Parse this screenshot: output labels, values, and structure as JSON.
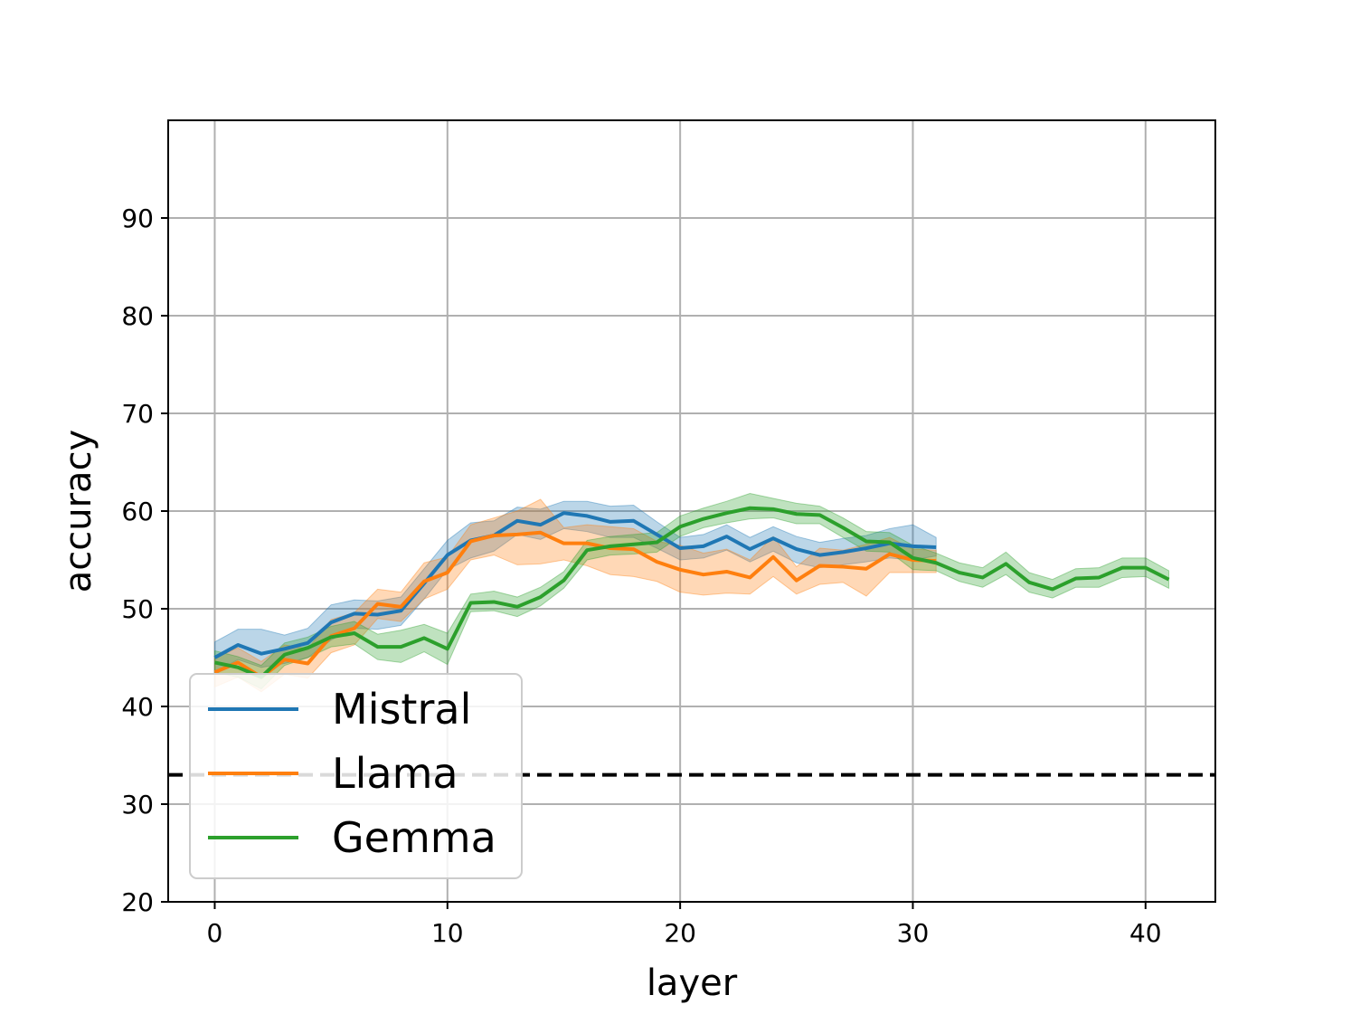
{
  "chart_data": {
    "type": "line",
    "title": "",
    "xlabel": "layer",
    "ylabel": "accuracy",
    "xlim": [
      -2,
      43
    ],
    "ylim": [
      20,
      100
    ],
    "xticks": [
      0,
      10,
      20,
      30,
      40
    ],
    "yticks": [
      20,
      30,
      40,
      50,
      60,
      70,
      80,
      90
    ],
    "grid": true,
    "legend_position": "lower-left",
    "baseline": {
      "y": 33,
      "style": "dashed",
      "color": "#000000"
    },
    "series": [
      {
        "name": "Mistral",
        "color": "#1f77b4",
        "x": [
          0,
          1,
          2,
          3,
          4,
          5,
          6,
          7,
          8,
          9,
          10,
          11,
          12,
          13,
          14,
          15,
          16,
          17,
          18,
          19,
          20,
          21,
          22,
          23,
          24,
          25,
          26,
          27,
          28,
          29,
          30,
          31
        ],
        "values": [
          45.0,
          46.3,
          45.4,
          45.9,
          46.5,
          48.6,
          49.5,
          49.4,
          49.8,
          52.6,
          55.5,
          57.0,
          57.5,
          59.0,
          58.6,
          59.8,
          59.5,
          58.9,
          59.0,
          57.6,
          56.2,
          56.4,
          57.4,
          56.1,
          57.2,
          56.1,
          55.5,
          55.8,
          56.2,
          56.7,
          56.4,
          56.3
        ],
        "lower": [
          43.5,
          44.8,
          44.0,
          44.4,
          45.0,
          46.8,
          48.0,
          47.9,
          48.3,
          51.0,
          54.0,
          55.2,
          55.9,
          57.6,
          57.1,
          58.2,
          57.9,
          57.3,
          57.3,
          56.2,
          55.0,
          55.2,
          56.0,
          54.8,
          55.9,
          54.7,
          54.2,
          54.5,
          54.8,
          55.2,
          55.0,
          55.4
        ],
        "upper": [
          46.6,
          47.9,
          47.9,
          47.3,
          48.0,
          50.4,
          50.9,
          50.8,
          51.2,
          54.1,
          57.0,
          58.8,
          59.0,
          60.4,
          60.2,
          61.0,
          61.0,
          60.5,
          60.6,
          58.9,
          57.3,
          57.6,
          58.6,
          57.3,
          58.4,
          57.4,
          56.8,
          57.2,
          57.5,
          58.2,
          58.6,
          57.3
        ]
      },
      {
        "name": "Llama",
        "color": "#ff7f0e",
        "x": [
          0,
          1,
          2,
          3,
          4,
          5,
          6,
          7,
          8,
          9,
          10,
          11,
          12,
          13,
          14,
          15,
          16,
          17,
          18,
          19,
          20,
          21,
          22,
          23,
          24,
          25,
          26,
          27,
          28,
          29,
          30,
          31
        ],
        "values": [
          43.5,
          44.5,
          43.0,
          44.8,
          44.4,
          47.2,
          48.0,
          50.5,
          50.2,
          52.8,
          53.7,
          56.9,
          57.5,
          57.6,
          57.8,
          56.7,
          56.7,
          56.2,
          56.1,
          54.8,
          54.0,
          53.5,
          53.8,
          53.2,
          55.3,
          52.9,
          54.4,
          54.3,
          54.1,
          55.6,
          55.0,
          54.9
        ],
        "lower": [
          42.0,
          43.0,
          41.5,
          43.3,
          42.9,
          45.5,
          46.3,
          49.0,
          48.7,
          51.0,
          52.0,
          55.0,
          55.5,
          54.5,
          54.6,
          55.0,
          54.4,
          53.5,
          53.3,
          52.8,
          51.7,
          51.4,
          51.6,
          51.5,
          53.3,
          51.5,
          52.5,
          52.7,
          51.3,
          53.7,
          53.7,
          53.7
        ],
        "upper": [
          45.0,
          46.0,
          44.6,
          46.3,
          45.9,
          48.9,
          49.6,
          52.0,
          51.7,
          54.7,
          55.3,
          58.6,
          59.3,
          60.0,
          61.2,
          58.3,
          58.6,
          58.4,
          58.2,
          56.9,
          56.5,
          55.7,
          56.1,
          55.0,
          57.4,
          54.3,
          56.2,
          56.0,
          56.6,
          57.3,
          56.1,
          56.0
        ]
      },
      {
        "name": "Gemma",
        "color": "#2ca02c",
        "x": [
          0,
          1,
          2,
          3,
          4,
          5,
          6,
          7,
          8,
          9,
          10,
          11,
          12,
          13,
          14,
          15,
          16,
          17,
          18,
          19,
          20,
          21,
          22,
          23,
          24,
          25,
          26,
          27,
          28,
          29,
          30,
          31,
          32,
          33,
          34,
          35,
          36,
          37,
          38,
          39,
          40,
          41
        ],
        "values": [
          44.5,
          44.0,
          43.0,
          45.3,
          46.0,
          47.1,
          47.5,
          46.1,
          46.1,
          47.0,
          45.9,
          50.6,
          50.7,
          50.2,
          51.2,
          52.9,
          56.0,
          56.4,
          56.6,
          56.8,
          58.4,
          59.2,
          59.8,
          60.3,
          60.2,
          59.7,
          59.6,
          58.3,
          56.9,
          56.8,
          55.2,
          54.7,
          53.7,
          53.2,
          54.6,
          52.7,
          52.0,
          53.1,
          53.2,
          54.2,
          54.2,
          53.0
        ],
        "lower": [
          43.5,
          43.0,
          41.8,
          44.2,
          45.0,
          46.1,
          46.4,
          44.8,
          44.5,
          45.6,
          44.3,
          49.7,
          49.8,
          49.2,
          50.3,
          52.1,
          55.0,
          55.5,
          55.6,
          55.8,
          57.4,
          58.3,
          58.8,
          59.2,
          59.3,
          58.7,
          58.7,
          57.3,
          55.9,
          55.8,
          54.0,
          53.9,
          52.8,
          52.2,
          53.5,
          51.7,
          51.1,
          52.2,
          52.2,
          53.2,
          53.3,
          52.1
        ],
        "upper": [
          45.7,
          45.1,
          44.2,
          46.5,
          47.1,
          48.2,
          48.7,
          47.4,
          47.8,
          48.4,
          47.5,
          51.5,
          51.8,
          51.2,
          52.2,
          53.8,
          57.0,
          57.4,
          57.6,
          57.8,
          59.5,
          60.3,
          61.0,
          61.8,
          61.3,
          60.8,
          60.5,
          59.3,
          57.9,
          57.8,
          56.5,
          55.7,
          54.7,
          54.2,
          55.8,
          53.7,
          53.0,
          54.1,
          54.2,
          55.2,
          55.2,
          53.9
        ]
      }
    ]
  }
}
